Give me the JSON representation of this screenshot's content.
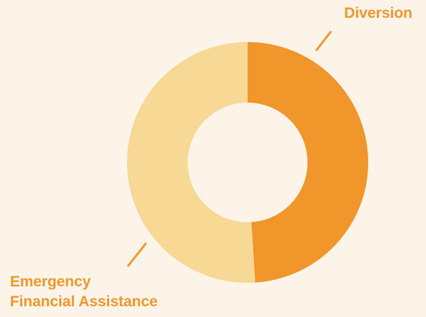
{
  "chart_data": {
    "type": "donut",
    "title": "",
    "slices": [
      {
        "label": "Diversion",
        "value": 49,
        "color": "#f0962a"
      },
      {
        "label_lines": [
          "Emergency",
          "Financial Assistance"
        ],
        "value": 51,
        "color": "#f7d894"
      }
    ]
  },
  "colors": {
    "background": "#fdf4e9",
    "label": "#f0962a"
  }
}
